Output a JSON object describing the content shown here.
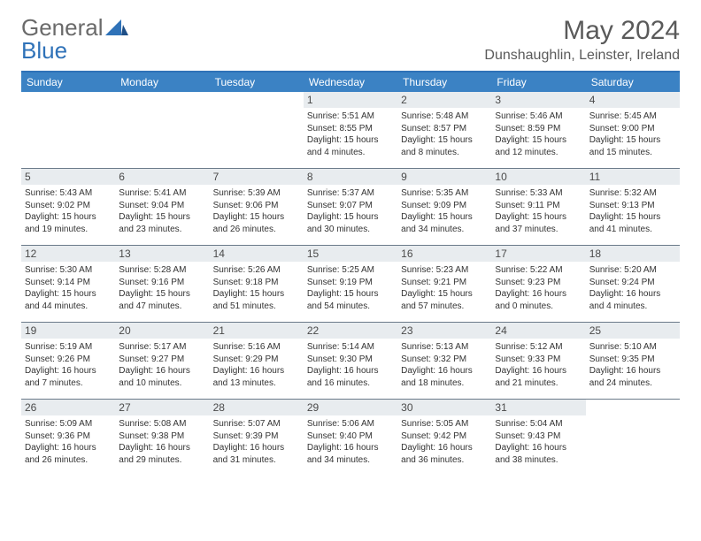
{
  "brand": {
    "part1": "General",
    "part2": "Blue"
  },
  "title": "May 2024",
  "location": "Dunshaughlin, Leinster, Ireland",
  "colors": {
    "header_bar": "#3b82c4",
    "daynum_bg": "#e8ecef",
    "week_border": "#6b7a8a",
    "logo_gray": "#6a6a6a",
    "logo_blue": "#2f72b8"
  },
  "dow": [
    "Sunday",
    "Monday",
    "Tuesday",
    "Wednesday",
    "Thursday",
    "Friday",
    "Saturday"
  ],
  "weeks": [
    [
      {
        "day": "",
        "sunrise": "",
        "sunset": "",
        "daylight1": "",
        "daylight2": ""
      },
      {
        "day": "",
        "sunrise": "",
        "sunset": "",
        "daylight1": "",
        "daylight2": ""
      },
      {
        "day": "",
        "sunrise": "",
        "sunset": "",
        "daylight1": "",
        "daylight2": ""
      },
      {
        "day": "1",
        "sunrise": "Sunrise: 5:51 AM",
        "sunset": "Sunset: 8:55 PM",
        "daylight1": "Daylight: 15 hours",
        "daylight2": "and 4 minutes."
      },
      {
        "day": "2",
        "sunrise": "Sunrise: 5:48 AM",
        "sunset": "Sunset: 8:57 PM",
        "daylight1": "Daylight: 15 hours",
        "daylight2": "and 8 minutes."
      },
      {
        "day": "3",
        "sunrise": "Sunrise: 5:46 AM",
        "sunset": "Sunset: 8:59 PM",
        "daylight1": "Daylight: 15 hours",
        "daylight2": "and 12 minutes."
      },
      {
        "day": "4",
        "sunrise": "Sunrise: 5:45 AM",
        "sunset": "Sunset: 9:00 PM",
        "daylight1": "Daylight: 15 hours",
        "daylight2": "and 15 minutes."
      }
    ],
    [
      {
        "day": "5",
        "sunrise": "Sunrise: 5:43 AM",
        "sunset": "Sunset: 9:02 PM",
        "daylight1": "Daylight: 15 hours",
        "daylight2": "and 19 minutes."
      },
      {
        "day": "6",
        "sunrise": "Sunrise: 5:41 AM",
        "sunset": "Sunset: 9:04 PM",
        "daylight1": "Daylight: 15 hours",
        "daylight2": "and 23 minutes."
      },
      {
        "day": "7",
        "sunrise": "Sunrise: 5:39 AM",
        "sunset": "Sunset: 9:06 PM",
        "daylight1": "Daylight: 15 hours",
        "daylight2": "and 26 minutes."
      },
      {
        "day": "8",
        "sunrise": "Sunrise: 5:37 AM",
        "sunset": "Sunset: 9:07 PM",
        "daylight1": "Daylight: 15 hours",
        "daylight2": "and 30 minutes."
      },
      {
        "day": "9",
        "sunrise": "Sunrise: 5:35 AM",
        "sunset": "Sunset: 9:09 PM",
        "daylight1": "Daylight: 15 hours",
        "daylight2": "and 34 minutes."
      },
      {
        "day": "10",
        "sunrise": "Sunrise: 5:33 AM",
        "sunset": "Sunset: 9:11 PM",
        "daylight1": "Daylight: 15 hours",
        "daylight2": "and 37 minutes."
      },
      {
        "day": "11",
        "sunrise": "Sunrise: 5:32 AM",
        "sunset": "Sunset: 9:13 PM",
        "daylight1": "Daylight: 15 hours",
        "daylight2": "and 41 minutes."
      }
    ],
    [
      {
        "day": "12",
        "sunrise": "Sunrise: 5:30 AM",
        "sunset": "Sunset: 9:14 PM",
        "daylight1": "Daylight: 15 hours",
        "daylight2": "and 44 minutes."
      },
      {
        "day": "13",
        "sunrise": "Sunrise: 5:28 AM",
        "sunset": "Sunset: 9:16 PM",
        "daylight1": "Daylight: 15 hours",
        "daylight2": "and 47 minutes."
      },
      {
        "day": "14",
        "sunrise": "Sunrise: 5:26 AM",
        "sunset": "Sunset: 9:18 PM",
        "daylight1": "Daylight: 15 hours",
        "daylight2": "and 51 minutes."
      },
      {
        "day": "15",
        "sunrise": "Sunrise: 5:25 AM",
        "sunset": "Sunset: 9:19 PM",
        "daylight1": "Daylight: 15 hours",
        "daylight2": "and 54 minutes."
      },
      {
        "day": "16",
        "sunrise": "Sunrise: 5:23 AM",
        "sunset": "Sunset: 9:21 PM",
        "daylight1": "Daylight: 15 hours",
        "daylight2": "and 57 minutes."
      },
      {
        "day": "17",
        "sunrise": "Sunrise: 5:22 AM",
        "sunset": "Sunset: 9:23 PM",
        "daylight1": "Daylight: 16 hours",
        "daylight2": "and 0 minutes."
      },
      {
        "day": "18",
        "sunrise": "Sunrise: 5:20 AM",
        "sunset": "Sunset: 9:24 PM",
        "daylight1": "Daylight: 16 hours",
        "daylight2": "and 4 minutes."
      }
    ],
    [
      {
        "day": "19",
        "sunrise": "Sunrise: 5:19 AM",
        "sunset": "Sunset: 9:26 PM",
        "daylight1": "Daylight: 16 hours",
        "daylight2": "and 7 minutes."
      },
      {
        "day": "20",
        "sunrise": "Sunrise: 5:17 AM",
        "sunset": "Sunset: 9:27 PM",
        "daylight1": "Daylight: 16 hours",
        "daylight2": "and 10 minutes."
      },
      {
        "day": "21",
        "sunrise": "Sunrise: 5:16 AM",
        "sunset": "Sunset: 9:29 PM",
        "daylight1": "Daylight: 16 hours",
        "daylight2": "and 13 minutes."
      },
      {
        "day": "22",
        "sunrise": "Sunrise: 5:14 AM",
        "sunset": "Sunset: 9:30 PM",
        "daylight1": "Daylight: 16 hours",
        "daylight2": "and 16 minutes."
      },
      {
        "day": "23",
        "sunrise": "Sunrise: 5:13 AM",
        "sunset": "Sunset: 9:32 PM",
        "daylight1": "Daylight: 16 hours",
        "daylight2": "and 18 minutes."
      },
      {
        "day": "24",
        "sunrise": "Sunrise: 5:12 AM",
        "sunset": "Sunset: 9:33 PM",
        "daylight1": "Daylight: 16 hours",
        "daylight2": "and 21 minutes."
      },
      {
        "day": "25",
        "sunrise": "Sunrise: 5:10 AM",
        "sunset": "Sunset: 9:35 PM",
        "daylight1": "Daylight: 16 hours",
        "daylight2": "and 24 minutes."
      }
    ],
    [
      {
        "day": "26",
        "sunrise": "Sunrise: 5:09 AM",
        "sunset": "Sunset: 9:36 PM",
        "daylight1": "Daylight: 16 hours",
        "daylight2": "and 26 minutes."
      },
      {
        "day": "27",
        "sunrise": "Sunrise: 5:08 AM",
        "sunset": "Sunset: 9:38 PM",
        "daylight1": "Daylight: 16 hours",
        "daylight2": "and 29 minutes."
      },
      {
        "day": "28",
        "sunrise": "Sunrise: 5:07 AM",
        "sunset": "Sunset: 9:39 PM",
        "daylight1": "Daylight: 16 hours",
        "daylight2": "and 31 minutes."
      },
      {
        "day": "29",
        "sunrise": "Sunrise: 5:06 AM",
        "sunset": "Sunset: 9:40 PM",
        "daylight1": "Daylight: 16 hours",
        "daylight2": "and 34 minutes."
      },
      {
        "day": "30",
        "sunrise": "Sunrise: 5:05 AM",
        "sunset": "Sunset: 9:42 PM",
        "daylight1": "Daylight: 16 hours",
        "daylight2": "and 36 minutes."
      },
      {
        "day": "31",
        "sunrise": "Sunrise: 5:04 AM",
        "sunset": "Sunset: 9:43 PM",
        "daylight1": "Daylight: 16 hours",
        "daylight2": "and 38 minutes."
      },
      {
        "day": "",
        "sunrise": "",
        "sunset": "",
        "daylight1": "",
        "daylight2": ""
      }
    ]
  ]
}
